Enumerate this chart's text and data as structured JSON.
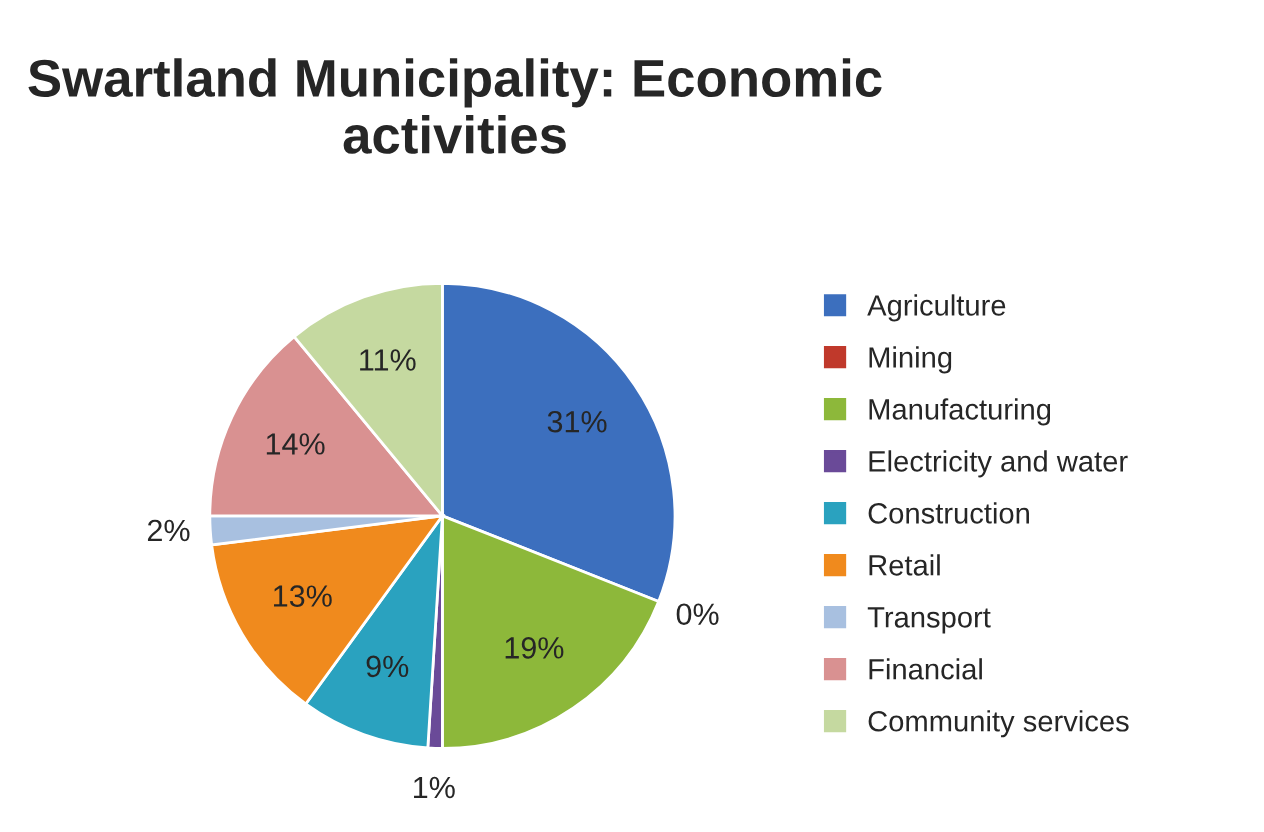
{
  "chart_data": {
    "type": "pie",
    "title": "Swartland Municipality: Economic activities",
    "categories": [
      "Agriculture",
      "Mining",
      "Manufacturing",
      "Electricity and water",
      "Construction",
      "Retail",
      "Transport",
      "Financial",
      "Community services"
    ],
    "values": [
      31,
      0,
      19,
      1,
      9,
      13,
      2,
      14,
      11
    ],
    "value_labels": [
      "31%",
      "0%",
      "19%",
      "1%",
      "9%",
      "13%",
      "2%",
      "14%",
      "11%"
    ],
    "colors": [
      "#3c6fbe",
      "#c0392b",
      "#8db83a",
      "#6a4a98",
      "#2aa2bf",
      "#f08a1d",
      "#a8c0e0",
      "#d99191",
      "#c5d9a0"
    ],
    "legend": "right"
  }
}
